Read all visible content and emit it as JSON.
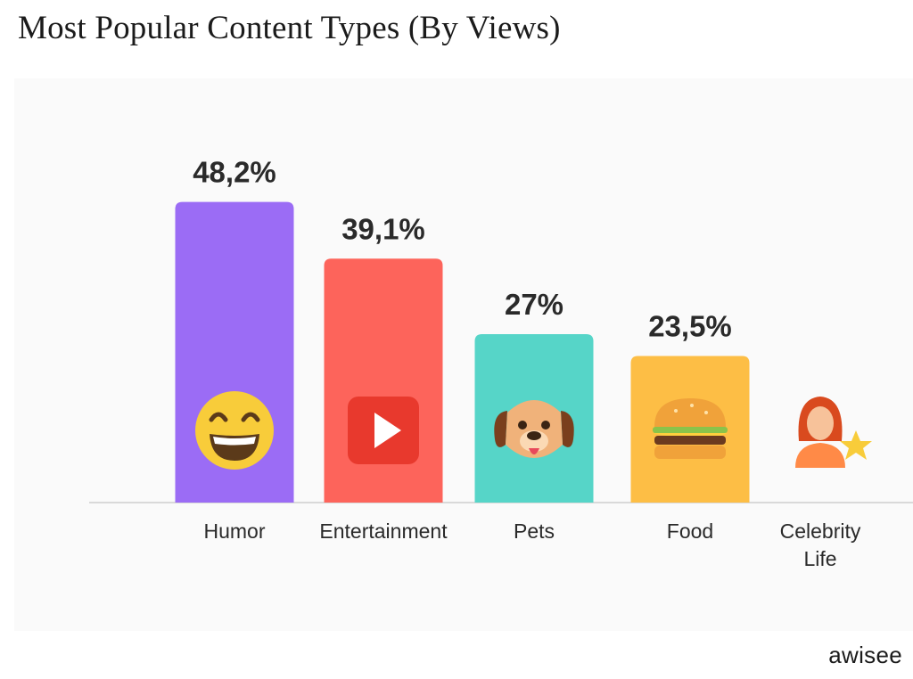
{
  "title": "Most Popular Content Types (By Views)",
  "brand": "awisee",
  "chart_data": {
    "type": "bar",
    "title": "Most Popular Content Types (By Views)",
    "xlabel": "",
    "ylabel": "",
    "ylim": [
      0,
      50
    ],
    "grid": false,
    "categories": [
      "Humor",
      "Entertainment",
      "Pets",
      "Food",
      "Celebrity Life"
    ],
    "category_lines": [
      [
        "Humor"
      ],
      [
        "Entertainment"
      ],
      [
        "Pets"
      ],
      [
        "Food"
      ],
      [
        "Celebrity",
        "Life"
      ]
    ],
    "values": [
      48.2,
      39.1,
      27,
      23.5,
      null
    ],
    "value_labels": [
      "48,2%",
      "39,1%",
      "27%",
      "23,5%",
      ""
    ],
    "colors": [
      "#9b6cf5",
      "#fd645b",
      "#56d5c8",
      "#fdbe45",
      null
    ],
    "icons": [
      "grinning-face-icon",
      "play-button-icon",
      "dog-face-icon",
      "burger-icon",
      "celebrity-star-icon"
    ]
  }
}
